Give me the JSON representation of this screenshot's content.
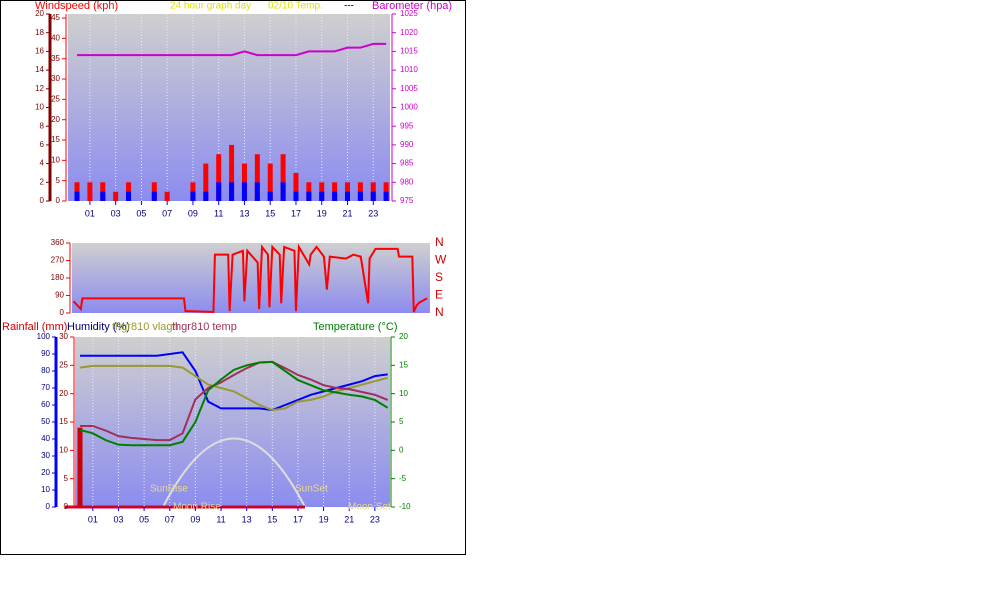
{
  "chart_data": [
    {
      "type": "bar",
      "title": "24 hour graph day",
      "subtitle": "02/10 Temp.",
      "annotation": "---",
      "x": [
        0,
        1,
        2,
        3,
        4,
        5,
        6,
        7,
        8,
        9,
        10,
        11,
        12,
        13,
        14,
        15,
        16,
        17,
        18,
        19,
        20,
        21,
        22,
        23,
        24
      ],
      "xlim": [
        -0.7,
        24.3
      ],
      "xticks": [
        {
          "value": 1,
          "label": "01"
        },
        {
          "value": 3,
          "label": "03"
        },
        {
          "value": 5,
          "label": "05"
        },
        {
          "value": 7,
          "label": "07"
        },
        {
          "value": 9,
          "label": "09"
        },
        {
          "value": 11,
          "label": "11"
        },
        {
          "value": 13,
          "label": "13"
        },
        {
          "value": 15,
          "label": "15"
        },
        {
          "value": 17,
          "label": "17"
        },
        {
          "value": 19,
          "label": "19"
        },
        {
          "value": 21,
          "label": "21"
        },
        {
          "value": 23,
          "label": "23"
        }
      ],
      "grid": true,
      "ylim": [
        0,
        20
      ],
      "yticks": [
        0,
        2,
        4,
        6,
        8,
        10,
        12,
        14,
        16,
        18,
        20
      ],
      "y3lim": [
        0,
        46
      ],
      "y3ticks": [
        0,
        5,
        10,
        15,
        20,
        25,
        30,
        35,
        40,
        45
      ],
      "y2lim": [
        975,
        1025
      ],
      "y2ticks": [
        975,
        980,
        985,
        990,
        995,
        1000,
        1005,
        1010,
        1015,
        1020,
        1025
      ],
      "series": [
        {
          "name": "Windspeed (kph)",
          "kind": "bar",
          "color": "#ff0000",
          "values": [
            2,
            2,
            2,
            1,
            2,
            0,
            2,
            1,
            0,
            2,
            4,
            5,
            6,
            4,
            5,
            4,
            5,
            3,
            2,
            2,
            2,
            2,
            2,
            2,
            2
          ]
        },
        {
          "kind": "bar",
          "color": "#0000ff",
          "values": [
            1,
            0,
            1,
            0,
            1,
            0,
            1,
            0,
            0,
            1,
            1,
            2,
            2,
            2,
            2,
            1,
            2,
            1,
            1,
            1,
            1,
            1,
            1,
            1,
            1
          ]
        },
        {
          "name": "Barometer (hpa)",
          "kind": "line",
          "axis": "y2",
          "color": "#cc00cc",
          "values": [
            1014,
            1014,
            1014,
            1014,
            1014,
            1014,
            1014,
            1014,
            1014,
            1014,
            1014,
            1014,
            1014,
            1015,
            1014,
            1014,
            1014,
            1014,
            1015,
            1015,
            1015,
            1016,
            1016,
            1017,
            1017
          ]
        }
      ]
    },
    {
      "type": "line",
      "x": [
        0,
        0.5,
        0.6,
        7.5,
        7.6,
        9.5,
        9.6,
        10.5,
        10.6,
        10.8,
        11.5,
        11.6,
        11.8,
        12.5,
        12.6,
        12.8,
        13.2,
        13.3,
        13.5,
        14,
        14.1,
        14.3,
        15,
        15.1,
        15.3,
        16,
        16.1,
        16.5,
        17,
        17.2,
        17.4,
        18.5,
        19,
        19.5,
        20,
        20.1,
        20.5,
        22,
        22.1,
        23,
        23.1,
        23.3,
        23.5,
        24
      ],
      "xlim": [
        -0.1,
        24.2
      ],
      "ylim": [
        0,
        360
      ],
      "yticks": [
        0,
        90,
        180,
        270,
        360
      ],
      "compass_labels": [
        "N",
        "W",
        "S",
        "E",
        "N"
      ],
      "series": [
        {
          "kind": "line",
          "color": "#ff0000",
          "values": [
            60,
            20,
            75,
            75,
            10,
            5,
            300,
            300,
            10,
            300,
            320,
            60,
            320,
            260,
            20,
            340,
            300,
            30,
            340,
            300,
            50,
            340,
            320,
            10,
            340,
            250,
            300,
            340,
            290,
            120,
            290,
            280,
            300,
            290,
            50,
            280,
            330,
            330,
            290,
            290,
            5,
            40,
            55,
            75
          ]
        }
      ]
    },
    {
      "type": "line",
      "x": [
        0,
        1,
        2,
        3,
        4,
        5,
        6,
        7,
        8,
        9,
        10,
        11,
        12,
        13,
        14,
        15,
        16,
        17,
        18,
        19,
        20,
        21,
        22,
        23,
        24
      ],
      "xlim": [
        -0.39,
        24.18
      ],
      "xticks": [
        {
          "value": 1,
          "label": "01"
        },
        {
          "value": 3,
          "label": "03"
        },
        {
          "value": 5,
          "label": "05"
        },
        {
          "value": 7,
          "label": "07"
        },
        {
          "value": 9,
          "label": "09"
        },
        {
          "value": 11,
          "label": "11"
        },
        {
          "value": 13,
          "label": "13"
        },
        {
          "value": 15,
          "label": "15"
        },
        {
          "value": 17,
          "label": "17"
        },
        {
          "value": 19,
          "label": "19"
        },
        {
          "value": 21,
          "label": "21"
        },
        {
          "value": 23,
          "label": "23"
        }
      ],
      "grid": true,
      "ylim": [
        0,
        100
      ],
      "yticks": [
        0,
        10,
        20,
        30,
        40,
        50,
        60,
        70,
        80,
        90,
        100
      ],
      "y3lim": [
        0,
        30
      ],
      "y3ticks": [
        0,
        5,
        10,
        15,
        20,
        25,
        30
      ],
      "y2lim": [
        -10,
        20
      ],
      "y2ticks": [
        -10,
        -5,
        0,
        5,
        10,
        15,
        20
      ],
      "annotations": [
        "SunRise",
        "SunSet",
        "Moon Rise",
        "Moon Set"
      ],
      "series": [
        {
          "name": "Rainfall (mm)",
          "kind": "bar",
          "axis": "y3",
          "color": "#cc0000",
          "values": [
            14,
            0,
            0,
            0,
            0,
            0,
            0,
            0,
            0,
            0,
            0,
            0,
            0,
            0,
            0,
            0,
            0,
            0,
            0,
            0,
            0,
            0,
            0,
            0,
            0
          ]
        },
        {
          "name": "Humidity (%)",
          "kind": "line",
          "color": "#0000ff",
          "values": [
            89,
            89,
            89,
            89,
            89,
            89,
            89,
            90,
            91,
            80,
            62,
            58,
            58,
            58,
            58,
            57,
            60,
            63,
            66,
            68,
            70,
            72,
            74,
            77,
            78
          ]
        },
        {
          "name": "thgr810 vlagh",
          "kind": "line",
          "color": "#999933",
          "values": [
            82,
            83,
            83,
            83,
            83,
            83,
            83,
            83,
            82,
            77,
            72,
            70,
            68,
            64,
            60,
            57,
            58,
            62,
            63,
            65,
            68,
            70,
            72,
            74,
            76
          ]
        },
        {
          "name": "thgr810 temp",
          "kind": "line",
          "axis": "y2",
          "color": "#a0305a",
          "values": [
            4.3,
            4.3,
            3.5,
            2.5,
            2.2,
            2.0,
            1.8,
            1.8,
            3,
            9,
            11,
            12,
            13.3,
            14.5,
            15.5,
            15.6,
            14.5,
            13.3,
            12.5,
            11.5,
            11,
            10.8,
            10.3,
            9.8,
            8.9
          ]
        },
        {
          "name": "Temperature (°C)",
          "kind": "line",
          "axis": "y2",
          "color": "#008000",
          "values": [
            3.6,
            3.0,
            1.8,
            1.0,
            0.9,
            0.9,
            0.9,
            0.9,
            1.5,
            5,
            10.6,
            12.5,
            14.2,
            15,
            15.5,
            15.6,
            14,
            12.4,
            11.5,
            10.6,
            10.2,
            9.8,
            9.5,
            8.9,
            7.5
          ]
        }
      ]
    }
  ]
}
